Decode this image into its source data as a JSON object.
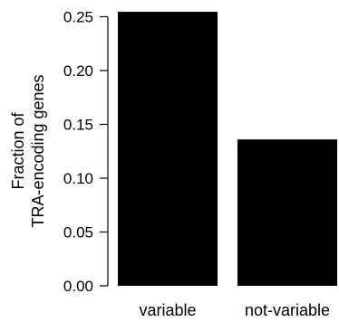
{
  "chart_data": {
    "type": "bar",
    "categories": [
      "variable",
      "not-variable"
    ],
    "values": [
      0.256,
      0.136
    ],
    "ylabel_lines": [
      "Fraction of",
      "TRA-encoding genes"
    ],
    "ylim": [
      0,
      0.25
    ],
    "yticks": [
      "0.00",
      "0.05",
      "0.10",
      "0.15",
      "0.20",
      "0.25"
    ],
    "grid": false,
    "bar_color": "#000000"
  }
}
